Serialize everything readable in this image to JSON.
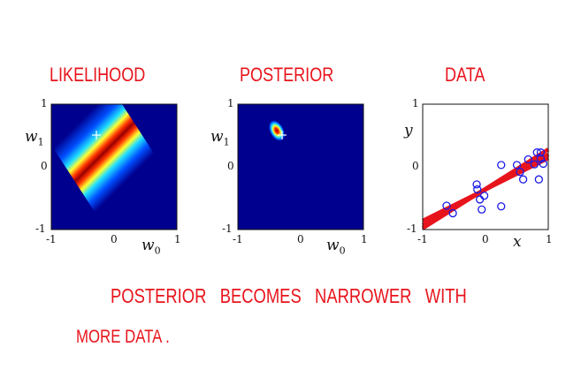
{
  "annotations": {
    "likelihood": "LIKELIHOOD",
    "posterior": "POSTERIOR",
    "data": "DATA",
    "note_line1": "POSTERIOR   BECOMES   NARROWER   WITH",
    "note_line2": "MORE DATA ."
  },
  "colors": {
    "ink": "#e8141c",
    "plot_bg": "#00008f",
    "data_point": "#1a1ae6",
    "fit_line": "#e8141c"
  },
  "panels": {
    "likelihood": {
      "ylabel_sym": "w",
      "ylabel_sub": "1",
      "xlabel_sym": "w",
      "xlabel_sub": "0",
      "yticks": [
        "1",
        "0",
        "-1"
      ],
      "xticks": [
        "-1",
        "0",
        "1"
      ]
    },
    "posterior": {
      "ylabel_sym": "w",
      "ylabel_sub": "1",
      "xlabel_sym": "w",
      "xlabel_sub": "0",
      "yticks": [
        "1",
        "0",
        "-1"
      ],
      "xticks": [
        "-1",
        "0",
        "1"
      ]
    },
    "data": {
      "ylabel_sym": "y",
      "xlabel_sym": "x",
      "yticks": [
        "1",
        "0",
        "-1"
      ],
      "xticks": [
        "-1",
        "0",
        "1"
      ]
    }
  },
  "chart_data": {
    "type": "scatter",
    "xlim": [
      -1,
      1
    ],
    "ylim": [
      -1,
      1
    ],
    "points": [
      {
        "x": -0.62,
        "y": -0.62
      },
      {
        "x": -0.52,
        "y": -0.74
      },
      {
        "x": -0.14,
        "y": -0.28
      },
      {
        "x": -0.13,
        "y": -0.36
      },
      {
        "x": -0.09,
        "y": -0.52
      },
      {
        "x": -0.06,
        "y": -0.68
      },
      {
        "x": -0.02,
        "y": -0.46
      },
      {
        "x": 0.25,
        "y": 0.03
      },
      {
        "x": 0.25,
        "y": -0.63
      },
      {
        "x": 0.5,
        "y": 0.03
      },
      {
        "x": 0.55,
        "y": -0.08
      },
      {
        "x": 0.6,
        "y": -0.2
      },
      {
        "x": 0.68,
        "y": 0.12
      },
      {
        "x": 0.78,
        "y": 0.04
      },
      {
        "x": 0.82,
        "y": 0.23
      },
      {
        "x": 0.85,
        "y": -0.2
      },
      {
        "x": 0.88,
        "y": 0.23
      },
      {
        "x": 0.88,
        "y": 0.13
      },
      {
        "x": 0.92,
        "y": 0.05
      }
    ],
    "fit_lines": [
      {
        "x0": -1,
        "y0": -0.93,
        "x1": 1,
        "y1": 0.2
      },
      {
        "x0": -1,
        "y0": -0.98,
        "x1": 1,
        "y1": 0.28
      },
      {
        "x0": -1,
        "y0": -0.86,
        "x1": 1,
        "y1": 0.14
      }
    ]
  }
}
